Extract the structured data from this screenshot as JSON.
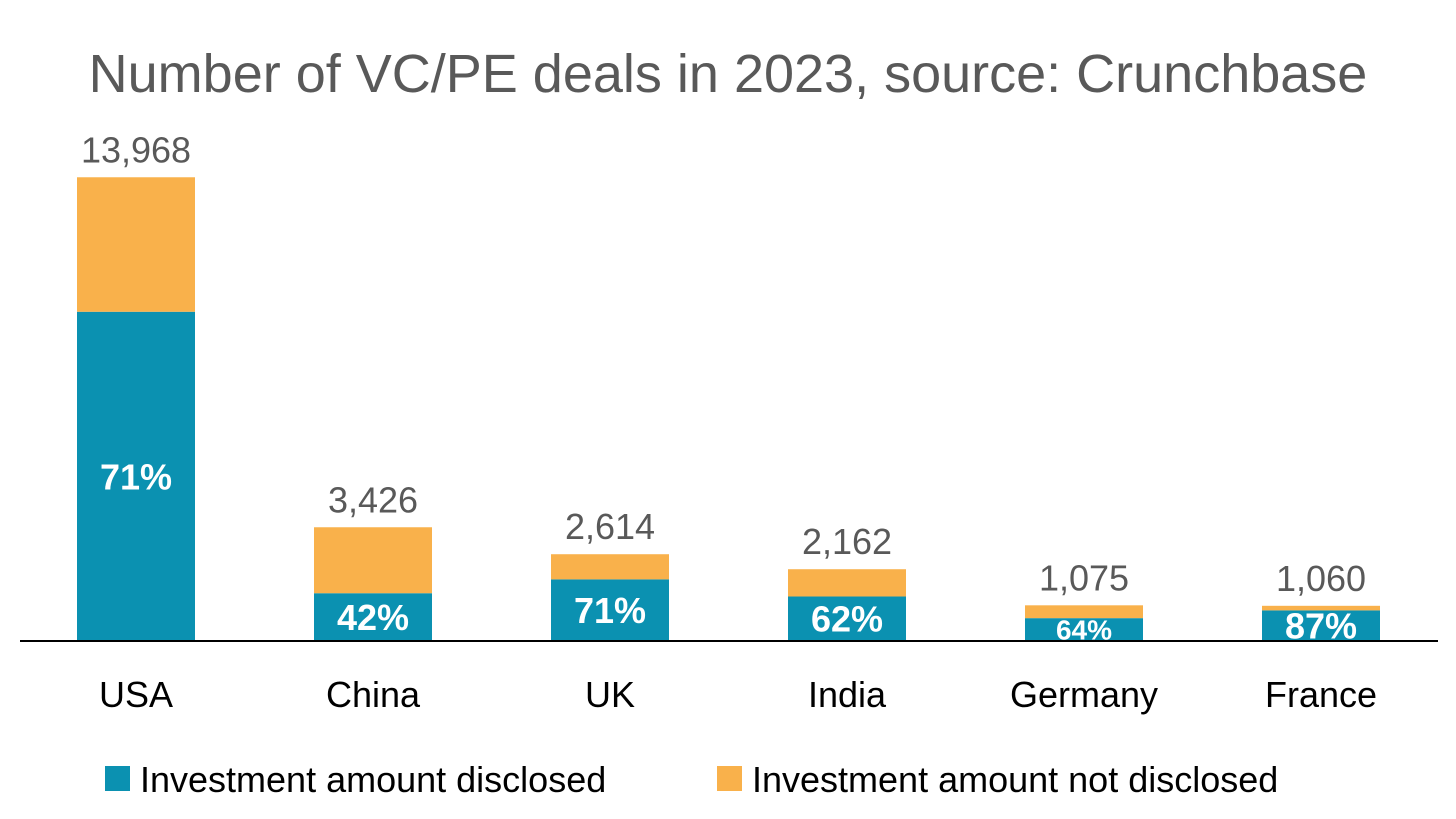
{
  "chart_data": {
    "type": "bar",
    "stacked": true,
    "title": "Number of VC/PE deals in 2023, source: Crunchbase",
    "xlabel": "",
    "ylabel": "",
    "ylim": [
      0,
      16000
    ],
    "grid": false,
    "legend_position": "bottom",
    "categories": [
      "USA",
      "China",
      "UK",
      "India",
      "Germany",
      "France"
    ],
    "totals": [
      13968,
      3426,
      2614,
      2162,
      1075,
      1060
    ],
    "total_labels": [
      "13,968",
      "3,426",
      "2,614",
      "2,162",
      "1,075",
      "1,060"
    ],
    "disclosed_share_labels": [
      "71%",
      "42%",
      "71%",
      "62%",
      "64%",
      "87%"
    ],
    "series": [
      {
        "name": "Investment amount disclosed",
        "color": "#0B91B1",
        "values": [
          9917,
          1439,
          1856,
          1340,
          688,
          922
        ]
      },
      {
        "name": "Investment amount not disclosed",
        "color": "#F9B14B",
        "values": [
          4051,
          1987,
          758,
          822,
          387,
          138
        ]
      }
    ]
  }
}
